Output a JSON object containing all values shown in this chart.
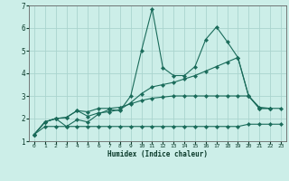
{
  "xlabel": "Humidex (Indice chaleur)",
  "bg_color": "#cceee8",
  "grid_color": "#aad4ce",
  "line_color": "#1a6b5a",
  "xlim": [
    -0.5,
    23.5
  ],
  "ylim": [
    1,
    7
  ],
  "xticks": [
    0,
    1,
    2,
    3,
    4,
    5,
    6,
    7,
    8,
    9,
    10,
    11,
    12,
    13,
    14,
    15,
    16,
    17,
    18,
    19,
    20,
    21,
    22,
    23
  ],
  "yticks": [
    1,
    2,
    3,
    4,
    5,
    6,
    7
  ],
  "series": [
    {
      "x": [
        0,
        1,
        2,
        3,
        4,
        5,
        6,
        7,
        8,
        9,
        10,
        11,
        12,
        13,
        14,
        15,
        16,
        17,
        18,
        19,
        20,
        21,
        22
      ],
      "y": [
        1.3,
        1.85,
        2.0,
        1.65,
        1.95,
        1.85,
        2.2,
        2.4,
        2.35,
        3.0,
        5.0,
        6.85,
        4.25,
        3.9,
        3.9,
        4.3,
        5.5,
        6.05,
        5.4,
        4.7,
        3.0,
        2.45,
        2.45
      ]
    },
    {
      "x": [
        0,
        1,
        2,
        3,
        4,
        5,
        6,
        7,
        8,
        9,
        10,
        11,
        12,
        13,
        14,
        15,
        16,
        17,
        18,
        19,
        20,
        21,
        22
      ],
      "y": [
        1.3,
        1.85,
        2.0,
        2.05,
        2.35,
        2.1,
        2.25,
        2.3,
        2.4,
        2.7,
        3.1,
        3.4,
        3.5,
        3.6,
        3.75,
        3.9,
        4.1,
        4.3,
        4.5,
        4.7,
        3.0,
        2.45,
        2.45
      ]
    },
    {
      "x": [
        0,
        1,
        2,
        3,
        4,
        5,
        6,
        7,
        8,
        9,
        10,
        11,
        12,
        13,
        14,
        15,
        16,
        17,
        18,
        19,
        20,
        21,
        22,
        23
      ],
      "y": [
        1.3,
        1.65,
        1.65,
        1.65,
        1.65,
        1.65,
        1.65,
        1.65,
        1.65,
        1.65,
        1.65,
        1.65,
        1.65,
        1.65,
        1.65,
        1.65,
        1.65,
        1.65,
        1.65,
        1.65,
        1.75,
        1.75,
        1.75,
        1.75
      ]
    },
    {
      "x": [
        0,
        1,
        2,
        3,
        4,
        5,
        6,
        7,
        8,
        9,
        10,
        11,
        12,
        13,
        14,
        15,
        16,
        17,
        18,
        19,
        20,
        21,
        22,
        23
      ],
      "y": [
        1.3,
        1.85,
        2.0,
        2.05,
        2.35,
        2.3,
        2.45,
        2.45,
        2.5,
        2.65,
        2.8,
        2.9,
        2.95,
        3.0,
        3.0,
        3.0,
        3.0,
        3.0,
        3.0,
        3.0,
        3.0,
        2.5,
        2.45,
        2.45
      ]
    }
  ]
}
